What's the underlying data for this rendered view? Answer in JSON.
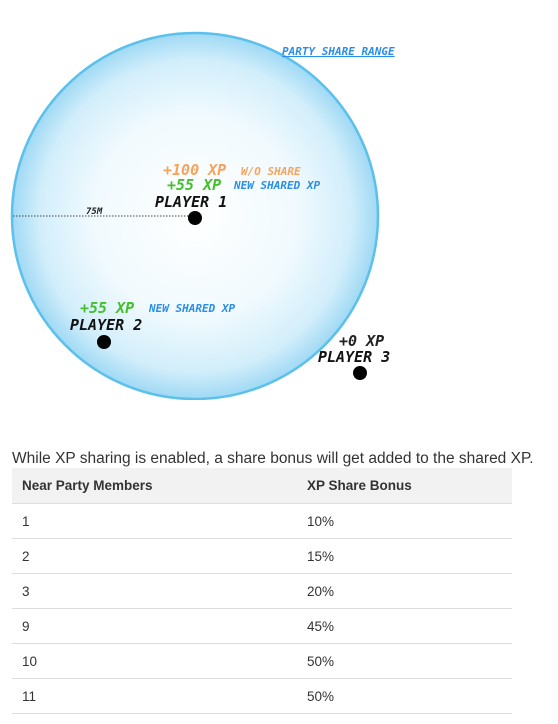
{
  "diagram": {
    "range_label": "PARTY SHARE RANGE",
    "distance_label": "75M",
    "players": [
      {
        "name": "PLAYER 1",
        "lines": [
          {
            "xp": "+100 XP",
            "note": "W/O SHARE",
            "xp_color": "#f7a35c",
            "note_color": "#f7a35c"
          },
          {
            "xp": "+55 XP",
            "note": "NEW SHARED XP",
            "xp_color": "#44c02c",
            "note_color": "#2a8ee6"
          }
        ]
      },
      {
        "name": "PLAYER 2",
        "lines": [
          {
            "xp": "+55 XP",
            "note": "NEW SHARED XP",
            "xp_color": "#44c02c",
            "note_color": "#2a8ee6"
          }
        ]
      },
      {
        "name": "PLAYER 3",
        "lines": [
          {
            "xp": "+0 XP",
            "note": "",
            "xp_color": "#222222",
            "note_color": "#222222"
          }
        ]
      }
    ],
    "colors": {
      "range_ring": "#5bc0eb",
      "range_label": "#2a8ee6",
      "player_dot": "#000000"
    }
  },
  "caption": "While XP sharing is enabled, a share bonus will get added to the shared XP.",
  "table": {
    "headers": [
      "Near Party Members",
      "XP Share Bonus"
    ],
    "rows": [
      [
        "1",
        "10%"
      ],
      [
        "2",
        "15%"
      ],
      [
        "3",
        "20%"
      ],
      [
        "9",
        "45%"
      ],
      [
        "10",
        "50%"
      ],
      [
        "11",
        "50%"
      ]
    ]
  }
}
